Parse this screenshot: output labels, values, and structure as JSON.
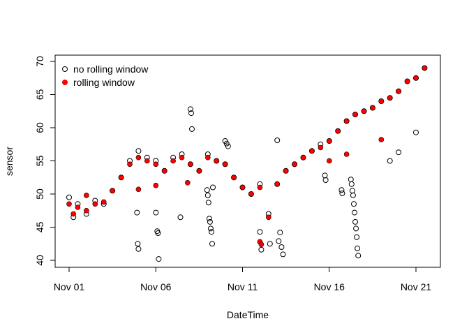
{
  "chart_data": {
    "type": "scatter",
    "title": "",
    "xlabel": "DateTime",
    "ylabel": "sensor",
    "xlim": [
      "2019-11-01",
      "2019-11-21"
    ],
    "ylim": [
      40,
      70
    ],
    "x_ticks": [
      {
        "date": "2019-11-01",
        "label": "Nov 01"
      },
      {
        "date": "2019-11-06",
        "label": "Nov 06"
      },
      {
        "date": "2019-11-11",
        "label": "Nov 11"
      },
      {
        "date": "2019-11-16",
        "label": "Nov 16"
      },
      {
        "date": "2019-11-21",
        "label": "Nov 21"
      }
    ],
    "y_ticks": [
      40,
      45,
      50,
      55,
      60,
      65,
      70
    ],
    "grid": false,
    "legend": {
      "position": "top-left",
      "entries": [
        {
          "label": "no rolling window",
          "marker": "open-circle",
          "color": "#000000"
        },
        {
          "label": "rolling window",
          "marker": "filled-circle",
          "color": "#ff0000"
        }
      ]
    },
    "series": [
      {
        "name": "no rolling window",
        "marker": "open-circle",
        "color": "#000000",
        "points": [
          {
            "x": "2019-11-01 00:00",
            "y": 49.5
          },
          {
            "x": "2019-11-01 06:00",
            "y": 46.5
          },
          {
            "x": "2019-11-01 12:00",
            "y": 48.5
          },
          {
            "x": "2019-11-02 00:00",
            "y": 47.0
          },
          {
            "x": "2019-11-02 12:00",
            "y": 49.0
          },
          {
            "x": "2019-11-03 00:00",
            "y": 48.5
          },
          {
            "x": "2019-11-03 12:00",
            "y": 50.5
          },
          {
            "x": "2019-11-04 00:00",
            "y": 52.5
          },
          {
            "x": "2019-11-04 12:00",
            "y": 55.0
          },
          {
            "x": "2019-11-05 00:00",
            "y": 56.5
          },
          {
            "x": "2019-11-05 12:00",
            "y": 55.5
          },
          {
            "x": "2019-11-06 00:00",
            "y": 55.0
          },
          {
            "x": "2019-11-06 12:00",
            "y": 53.5
          },
          {
            "x": "2019-11-07 00:00",
            "y": 55.5
          },
          {
            "x": "2019-11-07 12:00",
            "y": 56.0
          },
          {
            "x": "2019-11-08 00:00",
            "y": 54.5
          },
          {
            "x": "2019-11-08 12:00",
            "y": 53.5
          },
          {
            "x": "2019-11-09 00:00",
            "y": 56.0
          },
          {
            "x": "2019-11-09 12:00",
            "y": 55.0
          },
          {
            "x": "2019-11-10 00:00",
            "y": 54.5
          },
          {
            "x": "2019-11-10 12:00",
            "y": 52.5
          },
          {
            "x": "2019-11-11 00:00",
            "y": 51.0
          },
          {
            "x": "2019-11-11 12:00",
            "y": 50.0
          },
          {
            "x": "2019-11-12 00:00",
            "y": 51.5
          },
          {
            "x": "2019-11-12 12:00",
            "y": 47.0
          },
          {
            "x": "2019-11-13 00:00",
            "y": 51.5
          },
          {
            "x": "2019-11-13 12:00",
            "y": 53.5
          },
          {
            "x": "2019-11-14 00:00",
            "y": 54.5
          },
          {
            "x": "2019-11-14 12:00",
            "y": 55.5
          },
          {
            "x": "2019-11-15 00:00",
            "y": 56.5
          },
          {
            "x": "2019-11-15 12:00",
            "y": 57.5
          },
          {
            "x": "2019-11-16 00:00",
            "y": 58.0
          },
          {
            "x": "2019-11-16 12:00",
            "y": 59.5
          },
          {
            "x": "2019-11-17 00:00",
            "y": 61.0
          },
          {
            "x": "2019-11-17 12:00",
            "y": 62.0
          },
          {
            "x": "2019-11-18 00:00",
            "y": 62.5
          },
          {
            "x": "2019-11-18 12:00",
            "y": 63.0
          },
          {
            "x": "2019-11-19 00:00",
            "y": 64.0
          },
          {
            "x": "2019-11-19 12:00",
            "y": 64.5
          },
          {
            "x": "2019-11-20 00:00",
            "y": 65.5
          },
          {
            "x": "2019-11-20 12:00",
            "y": 67.0
          },
          {
            "x": "2019-11-21 00:00",
            "y": 67.5
          },
          {
            "x": "2019-11-21 12:00",
            "y": 69.0
          },
          {
            "x": "2019-11-04 22:00",
            "y": 47.2
          },
          {
            "x": "2019-11-04 23:00",
            "y": 42.5
          },
          {
            "x": "2019-11-05 00:00",
            "y": 41.7
          },
          {
            "x": "2019-11-06 00:00",
            "y": 47.2
          },
          {
            "x": "2019-11-06 02:00",
            "y": 44.4
          },
          {
            "x": "2019-11-06 03:00",
            "y": 44.1
          },
          {
            "x": "2019-11-06 04:00",
            "y": 40.2
          },
          {
            "x": "2019-11-07 10:00",
            "y": 46.5
          },
          {
            "x": "2019-11-08 00:00",
            "y": 62.8
          },
          {
            "x": "2019-11-08 01:00",
            "y": 62.2
          },
          {
            "x": "2019-11-08 02:00",
            "y": 59.8
          },
          {
            "x": "2019-11-08 23:00",
            "y": 50.6
          },
          {
            "x": "2019-11-09 00:00",
            "y": 49.8
          },
          {
            "x": "2019-11-09 01:00",
            "y": 48.7
          },
          {
            "x": "2019-11-09 02:00",
            "y": 46.3
          },
          {
            "x": "2019-11-09 03:00",
            "y": 45.8
          },
          {
            "x": "2019-11-09 04:00",
            "y": 44.8
          },
          {
            "x": "2019-11-09 05:00",
            "y": 44.3
          },
          {
            "x": "2019-11-09 06:00",
            "y": 42.5
          },
          {
            "x": "2019-11-09 07:00",
            "y": 51.0
          },
          {
            "x": "2019-11-10 00:00",
            "y": 58.0
          },
          {
            "x": "2019-11-10 02:00",
            "y": 57.6
          },
          {
            "x": "2019-11-10 04:00",
            "y": 57.2
          },
          {
            "x": "2019-11-12 00:00",
            "y": 44.3
          },
          {
            "x": "2019-11-12 02:00",
            "y": 41.6
          },
          {
            "x": "2019-11-12 14:00",
            "y": 42.5
          },
          {
            "x": "2019-11-13 00:00",
            "y": 58.1
          },
          {
            "x": "2019-11-13 02:00",
            "y": 42.9
          },
          {
            "x": "2019-11-13 04:00",
            "y": 44.2
          },
          {
            "x": "2019-11-13 06:00",
            "y": 42.0
          },
          {
            "x": "2019-11-13 08:00",
            "y": 40.9
          },
          {
            "x": "2019-11-15 18:00",
            "y": 52.8
          },
          {
            "x": "2019-11-15 19:00",
            "y": 52.1
          },
          {
            "x": "2019-11-16 17:00",
            "y": 50.6
          },
          {
            "x": "2019-11-16 18:00",
            "y": 50.1
          },
          {
            "x": "2019-11-17 06:00",
            "y": 52.2
          },
          {
            "x": "2019-11-17 07:00",
            "y": 51.5
          },
          {
            "x": "2019-11-17 08:00",
            "y": 50.5
          },
          {
            "x": "2019-11-17 09:00",
            "y": 49.8
          },
          {
            "x": "2019-11-17 10:00",
            "y": 48.5
          },
          {
            "x": "2019-11-17 11:00",
            "y": 47.2
          },
          {
            "x": "2019-11-17 12:00",
            "y": 45.8
          },
          {
            "x": "2019-11-17 13:00",
            "y": 44.8
          },
          {
            "x": "2019-11-17 14:00",
            "y": 43.5
          },
          {
            "x": "2019-11-17 15:00",
            "y": 41.8
          },
          {
            "x": "2019-11-17 16:00",
            "y": 40.7
          },
          {
            "x": "2019-11-19 12:00",
            "y": 55.0
          },
          {
            "x": "2019-11-20 00:00",
            "y": 56.3
          },
          {
            "x": "2019-11-21 00:00",
            "y": 59.3
          }
        ]
      },
      {
        "name": "rolling window",
        "marker": "filled-circle",
        "color": "#ff0000",
        "points": [
          {
            "x": "2019-11-01 00:00",
            "y": 48.5
          },
          {
            "x": "2019-11-01 06:00",
            "y": 47.0
          },
          {
            "x": "2019-11-01 12:00",
            "y": 48.0
          },
          {
            "x": "2019-11-02 00:00",
            "y": 47.5
          },
          {
            "x": "2019-11-02 12:00",
            "y": 48.5
          },
          {
            "x": "2019-11-03 00:00",
            "y": 48.8
          },
          {
            "x": "2019-11-03 12:00",
            "y": 50.5
          },
          {
            "x": "2019-11-04 00:00",
            "y": 52.5
          },
          {
            "x": "2019-11-04 12:00",
            "y": 54.5
          },
          {
            "x": "2019-11-05 00:00",
            "y": 55.5
          },
          {
            "x": "2019-11-05 12:00",
            "y": 55.0
          },
          {
            "x": "2019-11-06 00:00",
            "y": 54.5
          },
          {
            "x": "2019-11-06 12:00",
            "y": 53.5
          },
          {
            "x": "2019-11-07 00:00",
            "y": 55.0
          },
          {
            "x": "2019-11-07 12:00",
            "y": 55.5
          },
          {
            "x": "2019-11-08 00:00",
            "y": 54.5
          },
          {
            "x": "2019-11-08 12:00",
            "y": 53.5
          },
          {
            "x": "2019-11-09 00:00",
            "y": 55.5
          },
          {
            "x": "2019-11-09 12:00",
            "y": 55.0
          },
          {
            "x": "2019-11-10 00:00",
            "y": 54.5
          },
          {
            "x": "2019-11-10 12:00",
            "y": 52.5
          },
          {
            "x": "2019-11-11 00:00",
            "y": 51.0
          },
          {
            "x": "2019-11-11 12:00",
            "y": 50.0
          },
          {
            "x": "2019-11-12 00:00",
            "y": 51.0
          },
          {
            "x": "2019-11-12 12:00",
            "y": 46.5
          },
          {
            "x": "2019-11-13 00:00",
            "y": 51.5
          },
          {
            "x": "2019-11-13 12:00",
            "y": 53.5
          },
          {
            "x": "2019-11-14 00:00",
            "y": 54.5
          },
          {
            "x": "2019-11-14 12:00",
            "y": 55.5
          },
          {
            "x": "2019-11-15 00:00",
            "y": 56.5
          },
          {
            "x": "2019-11-15 12:00",
            "y": 57.0
          },
          {
            "x": "2019-11-16 00:00",
            "y": 58.0
          },
          {
            "x": "2019-11-16 12:00",
            "y": 59.5
          },
          {
            "x": "2019-11-17 00:00",
            "y": 61.0
          },
          {
            "x": "2019-11-17 12:00",
            "y": 62.0
          },
          {
            "x": "2019-11-18 00:00",
            "y": 62.5
          },
          {
            "x": "2019-11-18 12:00",
            "y": 63.0
          },
          {
            "x": "2019-11-19 00:00",
            "y": 64.0
          },
          {
            "x": "2019-11-19 12:00",
            "y": 64.5
          },
          {
            "x": "2019-11-20 00:00",
            "y": 65.5
          },
          {
            "x": "2019-11-20 12:00",
            "y": 67.0
          },
          {
            "x": "2019-11-21 00:00",
            "y": 67.5
          },
          {
            "x": "2019-11-21 12:00",
            "y": 69.0
          },
          {
            "x": "2019-11-02 00:00",
            "y": 49.8
          },
          {
            "x": "2019-11-05 00:00",
            "y": 50.7
          },
          {
            "x": "2019-11-06 00:00",
            "y": 51.3
          },
          {
            "x": "2019-11-07 20:00",
            "y": 51.7
          },
          {
            "x": "2019-11-12 00:00",
            "y": 42.8
          },
          {
            "x": "2019-11-12 02:00",
            "y": 42.4
          },
          {
            "x": "2019-11-16 00:00",
            "y": 55.0
          },
          {
            "x": "2019-11-17 00:00",
            "y": 56.0
          },
          {
            "x": "2019-11-19 00:00",
            "y": 58.2
          }
        ]
      }
    ]
  }
}
